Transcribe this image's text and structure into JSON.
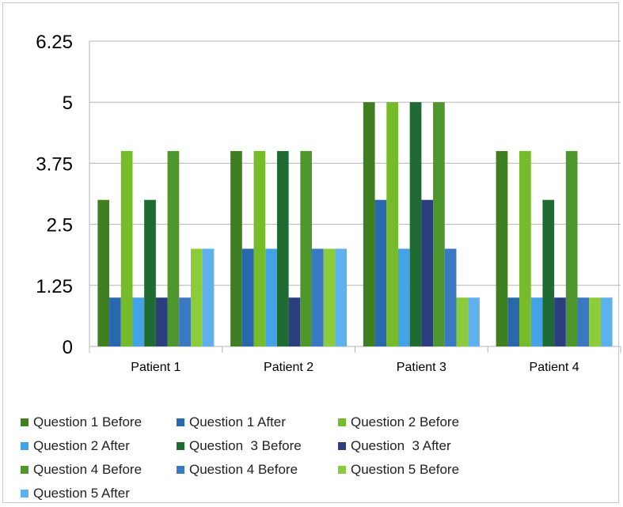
{
  "chart_data": {
    "type": "bar",
    "title": "",
    "xlabel": "",
    "ylabel": "",
    "ylim": [
      0,
      6.25
    ],
    "yticks": [
      "0",
      "1.25",
      "2.5",
      "3.75",
      "5",
      "6.25"
    ],
    "grid": true,
    "legend_position": "bottom",
    "categories": [
      "Patient 1",
      "Patient 2",
      "Patient 3",
      "Patient 4"
    ],
    "series": [
      {
        "name": "Question 1 Before",
        "color": "#3f7f1f",
        "values": [
          3,
          4,
          5,
          4
        ]
      },
      {
        "name": "Question 1 After",
        "color": "#2a68ae",
        "values": [
          1,
          2,
          3,
          1
        ]
      },
      {
        "name": "Question 2 Before",
        "color": "#76bb2a",
        "values": [
          4,
          4,
          5,
          4
        ]
      },
      {
        "name": "Question 2 After",
        "color": "#44a2e6",
        "values": [
          1,
          2,
          2,
          1
        ]
      },
      {
        "name": "Question  3 Before",
        "color": "#1f6b33",
        "values": [
          3,
          4,
          5,
          3
        ]
      },
      {
        "name": "Question  3 After",
        "color": "#2b3f7f",
        "values": [
          1,
          1,
          3,
          1
        ]
      },
      {
        "name": "Question 4 Before",
        "color": "#4f962c",
        "values": [
          4,
          4,
          5,
          4
        ]
      },
      {
        "name": "Question 4 Before",
        "color": "#3a78c2",
        "values": [
          1,
          2,
          2,
          1
        ]
      },
      {
        "name": "Question 5 Before",
        "color": "#8ccb3a",
        "values": [
          2,
          2,
          1,
          1
        ]
      },
      {
        "name": "Question 5 After",
        "color": "#5fb1ee",
        "values": [
          2,
          2,
          1,
          1
        ]
      }
    ]
  }
}
